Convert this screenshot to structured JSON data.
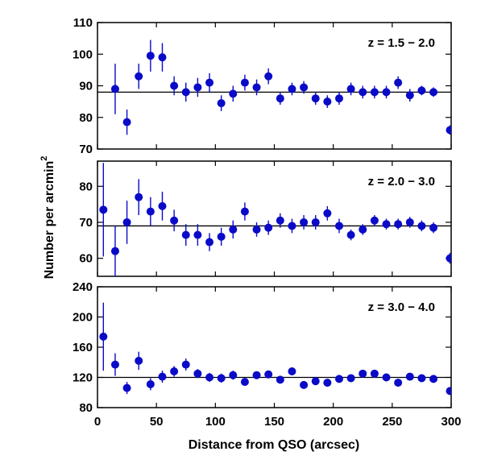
{
  "chart_data": {
    "type": "scatter",
    "xlabel": "Distance from QSO (arcsec)",
    "ylabel": "Number per arcmin",
    "ylabel_sup": "2",
    "xlim": [
      0,
      300
    ],
    "xticks": [
      0,
      50,
      100,
      150,
      200,
      250,
      300
    ],
    "shared_x": true,
    "grid": false,
    "marker_color": "#0a0ac8",
    "line_color": "#000000",
    "panels": [
      {
        "label": "z = 1.5 − 2.0",
        "ylim": [
          70,
          110
        ],
        "yticks": [
          70,
          80,
          90,
          100,
          110
        ],
        "reference_line": 88,
        "points": [
          {
            "x": 15,
            "y": 89,
            "err": 8
          },
          {
            "x": 25,
            "y": 78.5,
            "err": 4
          },
          {
            "x": 35,
            "y": 93,
            "err": 4
          },
          {
            "x": 45,
            "y": 99.5,
            "err": 5
          },
          {
            "x": 55,
            "y": 99,
            "err": 4.5
          },
          {
            "x": 65,
            "y": 90,
            "err": 3
          },
          {
            "x": 75,
            "y": 88,
            "err": 3
          },
          {
            "x": 85,
            "y": 89.5,
            "err": 3
          },
          {
            "x": 95,
            "y": 91,
            "err": 3
          },
          {
            "x": 105,
            "y": 84.5,
            "err": 2.5
          },
          {
            "x": 115,
            "y": 87.5,
            "err": 2.5
          },
          {
            "x": 125,
            "y": 91,
            "err": 2.5
          },
          {
            "x": 135,
            "y": 89.5,
            "err": 2.5
          },
          {
            "x": 145,
            "y": 93,
            "err": 2.5
          },
          {
            "x": 155,
            "y": 86,
            "err": 2
          },
          {
            "x": 165,
            "y": 89,
            "err": 2
          },
          {
            "x": 175,
            "y": 89.5,
            "err": 2
          },
          {
            "x": 185,
            "y": 86,
            "err": 2
          },
          {
            "x": 195,
            "y": 85,
            "err": 2
          },
          {
            "x": 205,
            "y": 86,
            "err": 2
          },
          {
            "x": 215,
            "y": 89,
            "err": 2
          },
          {
            "x": 225,
            "y": 88,
            "err": 2
          },
          {
            "x": 235,
            "y": 88,
            "err": 2
          },
          {
            "x": 245,
            "y": 88,
            "err": 2
          },
          {
            "x": 255,
            "y": 91,
            "err": 2
          },
          {
            "x": 265,
            "y": 87,
            "err": 2
          },
          {
            "x": 275,
            "y": 88.5,
            "err": 1.5
          },
          {
            "x": 285,
            "y": 88,
            "err": 1.5
          },
          {
            "x": 299,
            "y": 76,
            "err": 1.5
          }
        ]
      },
      {
        "label": "z = 2.0 − 3.0",
        "ylim": [
          55,
          87
        ],
        "yticks": [
          60,
          70,
          80
        ],
        "reference_line": 69,
        "points": [
          {
            "x": 5,
            "y": 73.5,
            "err": 13
          },
          {
            "x": 15,
            "y": 62,
            "err": 7
          },
          {
            "x": 25,
            "y": 70,
            "err": 6
          },
          {
            "x": 35,
            "y": 77,
            "err": 5
          },
          {
            "x": 45,
            "y": 73,
            "err": 4
          },
          {
            "x": 55,
            "y": 74.5,
            "err": 4
          },
          {
            "x": 65,
            "y": 70.5,
            "err": 3
          },
          {
            "x": 75,
            "y": 66.5,
            "err": 3
          },
          {
            "x": 85,
            "y": 66.5,
            "err": 3
          },
          {
            "x": 95,
            "y": 64.5,
            "err": 2.5
          },
          {
            "x": 105,
            "y": 66,
            "err": 2.5
          },
          {
            "x": 115,
            "y": 68,
            "err": 2.5
          },
          {
            "x": 125,
            "y": 73,
            "err": 2.5
          },
          {
            "x": 135,
            "y": 68,
            "err": 2
          },
          {
            "x": 145,
            "y": 68.5,
            "err": 2
          },
          {
            "x": 155,
            "y": 70.5,
            "err": 2
          },
          {
            "x": 165,
            "y": 69,
            "err": 2
          },
          {
            "x": 175,
            "y": 70,
            "err": 2
          },
          {
            "x": 185,
            "y": 70,
            "err": 2
          },
          {
            "x": 195,
            "y": 72.5,
            "err": 2
          },
          {
            "x": 205,
            "y": 69,
            "err": 2
          },
          {
            "x": 215,
            "y": 66.5,
            "err": 1.5
          },
          {
            "x": 225,
            "y": 68,
            "err": 1.5
          },
          {
            "x": 235,
            "y": 70.5,
            "err": 1.5
          },
          {
            "x": 245,
            "y": 69.5,
            "err": 1.5
          },
          {
            "x": 255,
            "y": 69.5,
            "err": 1.5
          },
          {
            "x": 265,
            "y": 70,
            "err": 1.5
          },
          {
            "x": 275,
            "y": 69,
            "err": 1.5
          },
          {
            "x": 285,
            "y": 68.5,
            "err": 1.5
          },
          {
            "x": 299,
            "y": 60,
            "err": 1.5
          }
        ]
      },
      {
        "label": "z = 3.0 − 4.0",
        "ylim": [
          80,
          240
        ],
        "yticks": [
          80,
          120,
          160,
          200,
          240
        ],
        "reference_line": 120,
        "points": [
          {
            "x": 5,
            "y": 174,
            "err": 45
          },
          {
            "x": 15,
            "y": 137,
            "err": 15
          },
          {
            "x": 25,
            "y": 106,
            "err": 8
          },
          {
            "x": 35,
            "y": 142,
            "err": 12
          },
          {
            "x": 45,
            "y": 111,
            "err": 8
          },
          {
            "x": 55,
            "y": 121,
            "err": 8
          },
          {
            "x": 65,
            "y": 128,
            "err": 7
          },
          {
            "x": 75,
            "y": 137,
            "err": 8
          },
          {
            "x": 85,
            "y": 125,
            "err": 6
          },
          {
            "x": 95,
            "y": 120,
            "err": 6
          },
          {
            "x": 105,
            "y": 119,
            "err": 6
          },
          {
            "x": 115,
            "y": 123,
            "err": 6
          },
          {
            "x": 125,
            "y": 114,
            "err": 5
          },
          {
            "x": 135,
            "y": 123,
            "err": 5
          },
          {
            "x": 145,
            "y": 124,
            "err": 5
          },
          {
            "x": 155,
            "y": 117,
            "err": 5
          },
          {
            "x": 165,
            "y": 128,
            "err": 5
          },
          {
            "x": 175,
            "y": 110,
            "err": 5
          },
          {
            "x": 185,
            "y": 115,
            "err": 5
          },
          {
            "x": 195,
            "y": 113,
            "err": 5
          },
          {
            "x": 205,
            "y": 118,
            "err": 5
          },
          {
            "x": 215,
            "y": 119,
            "err": 5
          },
          {
            "x": 225,
            "y": 125,
            "err": 5
          },
          {
            "x": 235,
            "y": 125,
            "err": 5
          },
          {
            "x": 245,
            "y": 120,
            "err": 5
          },
          {
            "x": 255,
            "y": 113,
            "err": 5
          },
          {
            "x": 265,
            "y": 121,
            "err": 5
          },
          {
            "x": 275,
            "y": 119,
            "err": 5
          },
          {
            "x": 285,
            "y": 118,
            "err": 5
          },
          {
            "x": 299,
            "y": 102,
            "err": 5
          }
        ]
      }
    ]
  }
}
